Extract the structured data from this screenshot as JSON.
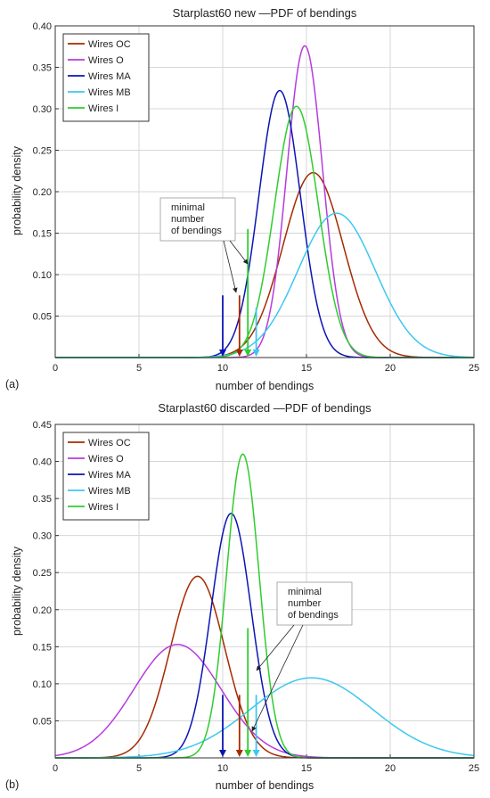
{
  "chart_data": [
    {
      "type": "line",
      "panel_label": "(a)",
      "title": "Starplast60 new —PDF of bendings",
      "xlabel": "number of bendings",
      "ylabel": "probability density",
      "xlim": [
        0,
        25
      ],
      "ylim": [
        0,
        0.4
      ],
      "xticks": [
        0,
        5,
        10,
        15,
        20,
        25
      ],
      "yticks": [
        0.05,
        0.1,
        0.15,
        0.2,
        0.25,
        0.3,
        0.35,
        0.4
      ],
      "ytick_labels": [
        "0.05",
        "0.10",
        "0.15",
        "0.20",
        "0.25",
        "0.30",
        "0.35",
        "0.40"
      ],
      "grid": true,
      "legend_position": "top-left",
      "series": [
        {
          "name": "Wires OC",
          "color": "#a52a00",
          "mean": 15.4,
          "sd": 1.8,
          "peak": 0.223
        },
        {
          "name": "Wires O",
          "color": "#b53cdd",
          "mean": 14.9,
          "sd": 1.06,
          "peak": 0.376
        },
        {
          "name": "Wires MA",
          "color": "#0a14b4",
          "mean": 13.4,
          "sd": 1.24,
          "peak": 0.322
        },
        {
          "name": "Wires MB",
          "color": "#3dc7f0",
          "mean": 16.8,
          "sd": 2.3,
          "peak": 0.174
        },
        {
          "name": "Wires I",
          "color": "#2fcc2f",
          "mean": 14.4,
          "sd": 1.31,
          "peak": 0.303
        }
      ],
      "markers": [
        {
          "series": "Wires MA",
          "x": 10.0,
          "top": 0.075
        },
        {
          "series": "Wires OC",
          "x": 11.0,
          "top": 0.075
        },
        {
          "series": "Wires I",
          "x": 11.5,
          "top": 0.155
        },
        {
          "series": "Wires MB",
          "x": 12.0,
          "top": 0.06
        }
      ],
      "annotation": {
        "lines": [
          "minimal",
          "number",
          "of bendings"
        ],
        "position": "center-left"
      }
    },
    {
      "type": "line",
      "panel_label": "(b)",
      "title": "Starplast60 discarded —PDF of bendings",
      "xlabel": "number of bendings",
      "ylabel": "probability density",
      "xlim": [
        0,
        25
      ],
      "ylim": [
        0,
        0.45
      ],
      "xticks": [
        0,
        5,
        10,
        15,
        20,
        25
      ],
      "yticks": [
        0.05,
        0.1,
        0.15,
        0.2,
        0.25,
        0.3,
        0.35,
        0.4,
        0.45
      ],
      "ytick_labels": [
        "0.05",
        "0.10",
        "0.15",
        "0.20",
        "0.25",
        "0.30",
        "0.35",
        "0.40",
        "0.45"
      ],
      "grid": true,
      "legend_position": "top-left",
      "series": [
        {
          "name": "Wires OC",
          "color": "#a52a00",
          "mean": 8.5,
          "sd": 1.62,
          "peak": 0.245
        },
        {
          "name": "Wires O",
          "color": "#b53cdd",
          "mean": 7.3,
          "sd": 2.6,
          "peak": 0.153
        },
        {
          "name": "Wires MA",
          "color": "#0a14b4",
          "mean": 10.5,
          "sd": 1.2,
          "peak": 0.33
        },
        {
          "name": "Wires MB",
          "color": "#3dc7f0",
          "mean": 15.3,
          "sd": 3.65,
          "peak": 0.108
        },
        {
          "name": "Wires I",
          "color": "#2fcc2f",
          "mean": 11.2,
          "sd": 0.97,
          "peak": 0.41
        }
      ],
      "markers": [
        {
          "series": "Wires MA",
          "x": 10.0,
          "top": 0.085
        },
        {
          "series": "Wires OC",
          "x": 11.0,
          "top": 0.085
        },
        {
          "series": "Wires I",
          "x": 11.5,
          "top": 0.175
        },
        {
          "series": "Wires MB",
          "x": 12.0,
          "top": 0.085
        }
      ],
      "annotation": {
        "lines": [
          "minimal",
          "number",
          "of bendings"
        ],
        "position": "center-right"
      }
    }
  ]
}
